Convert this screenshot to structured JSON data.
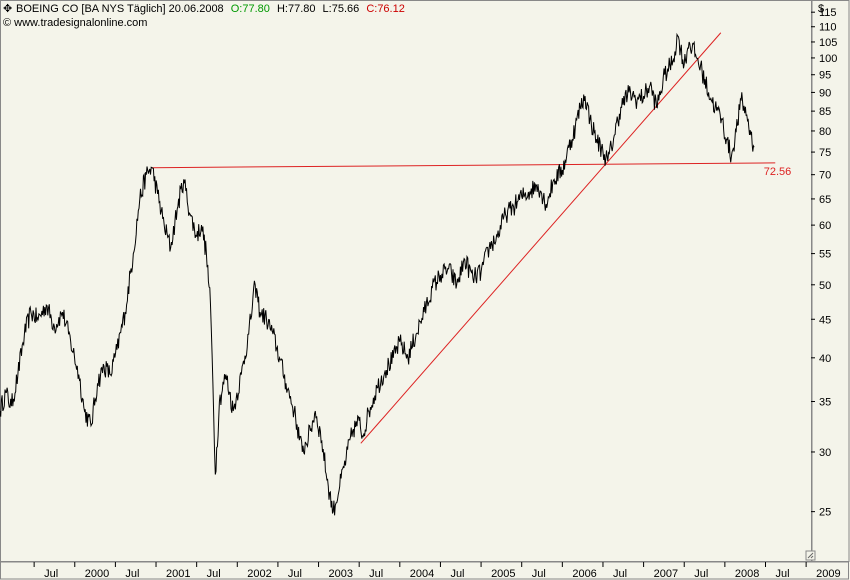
{
  "header": {
    "instrument": "BOEING CO [BA NYS  Täglich] 20.06.2008",
    "open_label": "O:77.80",
    "high_label": "H:77.80",
    "low_label": "L:75.66",
    "close_label": "C:76.12",
    "source": "www.tradesignalonline.com",
    "currency": "$"
  },
  "colors": {
    "background": "#f4f4ea",
    "price": "#000000",
    "open": "#009900",
    "close": "#cc0000",
    "trendline": "#dd2222"
  },
  "chart_data": {
    "type": "line",
    "yscale": "log",
    "ylim": [
      21.5,
      119
    ],
    "xlim": [
      1999.08,
      2009.06
    ],
    "yticks": [
      25,
      30,
      35,
      40,
      45,
      50,
      55,
      60,
      65,
      70,
      75,
      80,
      85,
      90,
      95,
      100,
      105,
      110,
      115
    ],
    "xticks": [
      {
        "label": "Jul",
        "t": 1999.5
      },
      {
        "label": "2000",
        "t": 2000.0
      },
      {
        "label": "Jul",
        "t": 2000.5
      },
      {
        "label": "2001",
        "t": 2001.0
      },
      {
        "label": "Jul",
        "t": 2001.5
      },
      {
        "label": "2002",
        "t": 2002.0
      },
      {
        "label": "Jul",
        "t": 2002.5
      },
      {
        "label": "2003",
        "t": 2003.0
      },
      {
        "label": "Jul",
        "t": 2003.5
      },
      {
        "label": "2004",
        "t": 2004.0
      },
      {
        "label": "Jul",
        "t": 2004.5
      },
      {
        "label": "2005",
        "t": 2005.0
      },
      {
        "label": "Jul",
        "t": 2005.5
      },
      {
        "label": "2006",
        "t": 2006.0
      },
      {
        "label": "Jul",
        "t": 2006.5
      },
      {
        "label": "2007",
        "t": 2007.0
      },
      {
        "label": "Jul",
        "t": 2007.5
      },
      {
        "label": "2008",
        "t": 2008.0
      },
      {
        "label": "Jul",
        "t": 2008.5
      },
      {
        "label": "2009",
        "t": 2009.0
      }
    ],
    "series": [
      {
        "points": [
          [
            1999.08,
            34
          ],
          [
            1999.15,
            36
          ],
          [
            1999.22,
            34.5
          ],
          [
            1999.3,
            38
          ],
          [
            1999.38,
            43
          ],
          [
            1999.46,
            46
          ],
          [
            1999.55,
            45
          ],
          [
            1999.65,
            47
          ],
          [
            1999.75,
            44
          ],
          [
            1999.85,
            46
          ],
          [
            1999.95,
            42
          ],
          [
            2000.05,
            38
          ],
          [
            2000.12,
            34
          ],
          [
            2000.2,
            32.5
          ],
          [
            2000.28,
            37
          ],
          [
            2000.36,
            39
          ],
          [
            2000.44,
            38
          ],
          [
            2000.52,
            41
          ],
          [
            2000.62,
            46
          ],
          [
            2000.72,
            55
          ],
          [
            2000.8,
            65
          ],
          [
            2000.88,
            70
          ],
          [
            2000.95,
            71.5
          ],
          [
            2001.02,
            66
          ],
          [
            2001.1,
            60
          ],
          [
            2001.18,
            56
          ],
          [
            2001.26,
            63
          ],
          [
            2001.34,
            69
          ],
          [
            2001.42,
            62
          ],
          [
            2001.5,
            58
          ],
          [
            2001.56,
            60
          ],
          [
            2001.62,
            55
          ],
          [
            2001.67,
            47
          ],
          [
            2001.7,
            37
          ],
          [
            2001.73,
            28
          ],
          [
            2001.78,
            35
          ],
          [
            2001.86,
            38
          ],
          [
            2001.95,
            34
          ],
          [
            2002.05,
            38
          ],
          [
            2002.14,
            43
          ],
          [
            2002.22,
            50
          ],
          [
            2002.28,
            46
          ],
          [
            2002.36,
            45
          ],
          [
            2002.44,
            43
          ],
          [
            2002.52,
            40
          ],
          [
            2002.6,
            37
          ],
          [
            2002.7,
            34
          ],
          [
            2002.8,
            30
          ],
          [
            2002.9,
            32
          ],
          [
            2002.96,
            34
          ],
          [
            2003.04,
            31
          ],
          [
            2003.12,
            27
          ],
          [
            2003.18,
            25
          ],
          [
            2003.26,
            27
          ],
          [
            2003.34,
            29.5
          ],
          [
            2003.42,
            32
          ],
          [
            2003.5,
            33
          ],
          [
            2003.54,
            31.5
          ],
          [
            2003.62,
            34
          ],
          [
            2003.72,
            36.5
          ],
          [
            2003.82,
            38.5
          ],
          [
            2003.92,
            40
          ],
          [
            2004.0,
            42
          ],
          [
            2004.1,
            40
          ],
          [
            2004.2,
            43
          ],
          [
            2004.3,
            46
          ],
          [
            2004.4,
            49.5
          ],
          [
            2004.5,
            51.5
          ],
          [
            2004.6,
            52.5
          ],
          [
            2004.7,
            50
          ],
          [
            2004.8,
            54
          ],
          [
            2004.9,
            51
          ],
          [
            2005.0,
            52
          ],
          [
            2005.1,
            56
          ],
          [
            2005.2,
            58
          ],
          [
            2005.3,
            62
          ],
          [
            2005.4,
            63.5
          ],
          [
            2005.5,
            65.5
          ],
          [
            2005.6,
            66.5
          ],
          [
            2005.7,
            68
          ],
          [
            2005.8,
            64
          ],
          [
            2005.9,
            69
          ],
          [
            2006.0,
            71
          ],
          [
            2006.08,
            76
          ],
          [
            2006.16,
            81
          ],
          [
            2006.22,
            86
          ],
          [
            2006.28,
            89
          ],
          [
            2006.34,
            83
          ],
          [
            2006.42,
            78
          ],
          [
            2006.5,
            75
          ],
          [
            2006.56,
            73
          ],
          [
            2006.64,
            79
          ],
          [
            2006.72,
            86
          ],
          [
            2006.82,
            90
          ],
          [
            2006.92,
            88
          ],
          [
            2007.0,
            89
          ],
          [
            2007.08,
            92
          ],
          [
            2007.16,
            86
          ],
          [
            2007.26,
            95
          ],
          [
            2007.36,
            99
          ],
          [
            2007.42,
            107
          ],
          [
            2007.5,
            98
          ],
          [
            2007.56,
            105
          ],
          [
            2007.64,
            101
          ],
          [
            2007.72,
            96
          ],
          [
            2007.8,
            90
          ],
          [
            2007.88,
            86
          ],
          [
            2007.96,
            83
          ],
          [
            2008.02,
            78
          ],
          [
            2008.08,
            74
          ],
          [
            2008.14,
            80
          ],
          [
            2008.2,
            88
          ],
          [
            2008.27,
            84
          ],
          [
            2008.32,
            79
          ],
          [
            2008.36,
            76.12
          ]
        ]
      }
    ],
    "lines": [
      {
        "from": [
          2000.95,
          71.5
        ],
        "to": [
          2008.62,
          72.56
        ]
      },
      {
        "from": [
          2003.52,
          30.8
        ],
        "to": [
          2007.95,
          108
        ]
      }
    ],
    "annotations": [
      {
        "text": "72.56",
        "t": 2008.38,
        "value": 72.56
      }
    ]
  }
}
